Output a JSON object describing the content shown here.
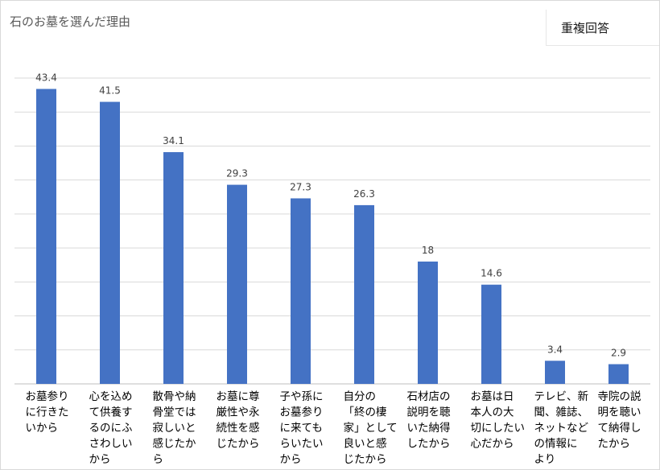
{
  "chart_data": {
    "type": "bar",
    "title": "石のお墓を選んだ理由",
    "legend_note": "重複回答",
    "xlabel": "",
    "ylabel": "",
    "ylim": [
      0,
      45
    ],
    "grid": true,
    "bar_color": "#4472c4",
    "categories": [
      "お墓参りに行きたいから",
      "心を込めて供養するのにふさわしいから",
      "散骨や納骨堂では寂しいと感じたから",
      "お墓に尊厳性や永続性を感じたから",
      "子や孫にお墓参りに来てもらいたいから",
      "自分の「終の棲家」として良いと感じたから",
      "石材店の説明を聴いた納得したから",
      "お墓は日本人の大切にしたい心だから",
      "テレビ、新聞、雑誌、ネットなどの情報により",
      "寺院の説明を聴いて納得したから"
    ],
    "category_lines": [
      [
        "お墓参り",
        "に行きた",
        "いから"
      ],
      [
        "心を込め",
        "て供養す",
        "るのにふ",
        "さわしい",
        "から"
      ],
      [
        "散骨や納",
        "骨堂では",
        "寂しいと",
        "感じたか",
        "ら"
      ],
      [
        "お墓に尊",
        "厳性や永",
        "続性を感",
        "じたから"
      ],
      [
        "子や孫に",
        "お墓参り",
        "に来ても",
        "らいたい",
        "から"
      ],
      [
        "自分の",
        "「終の棲",
        "家」として",
        "良いと感",
        "じたから"
      ],
      [
        "石材店の",
        "説明を聴",
        "いた納得",
        "したから"
      ],
      [
        "お墓は日",
        "本人の大",
        "切にしたい",
        "心だから"
      ],
      [
        "テレビ、新",
        "聞、雑誌、",
        "ネットなど",
        "の情報に",
        "より"
      ],
      [
        "寺院の説",
        "明を聴い",
        "て納得し",
        "たから"
      ]
    ],
    "values": [
      43.4,
      41.5,
      34.1,
      29.3,
      27.3,
      26.3,
      18,
      14.6,
      3.4,
      2.9
    ],
    "value_labels": [
      "43.4",
      "41.5",
      "34.1",
      "29.3",
      "27.3",
      "26.3",
      "18",
      "14.6",
      "3.4",
      "2.9"
    ]
  }
}
